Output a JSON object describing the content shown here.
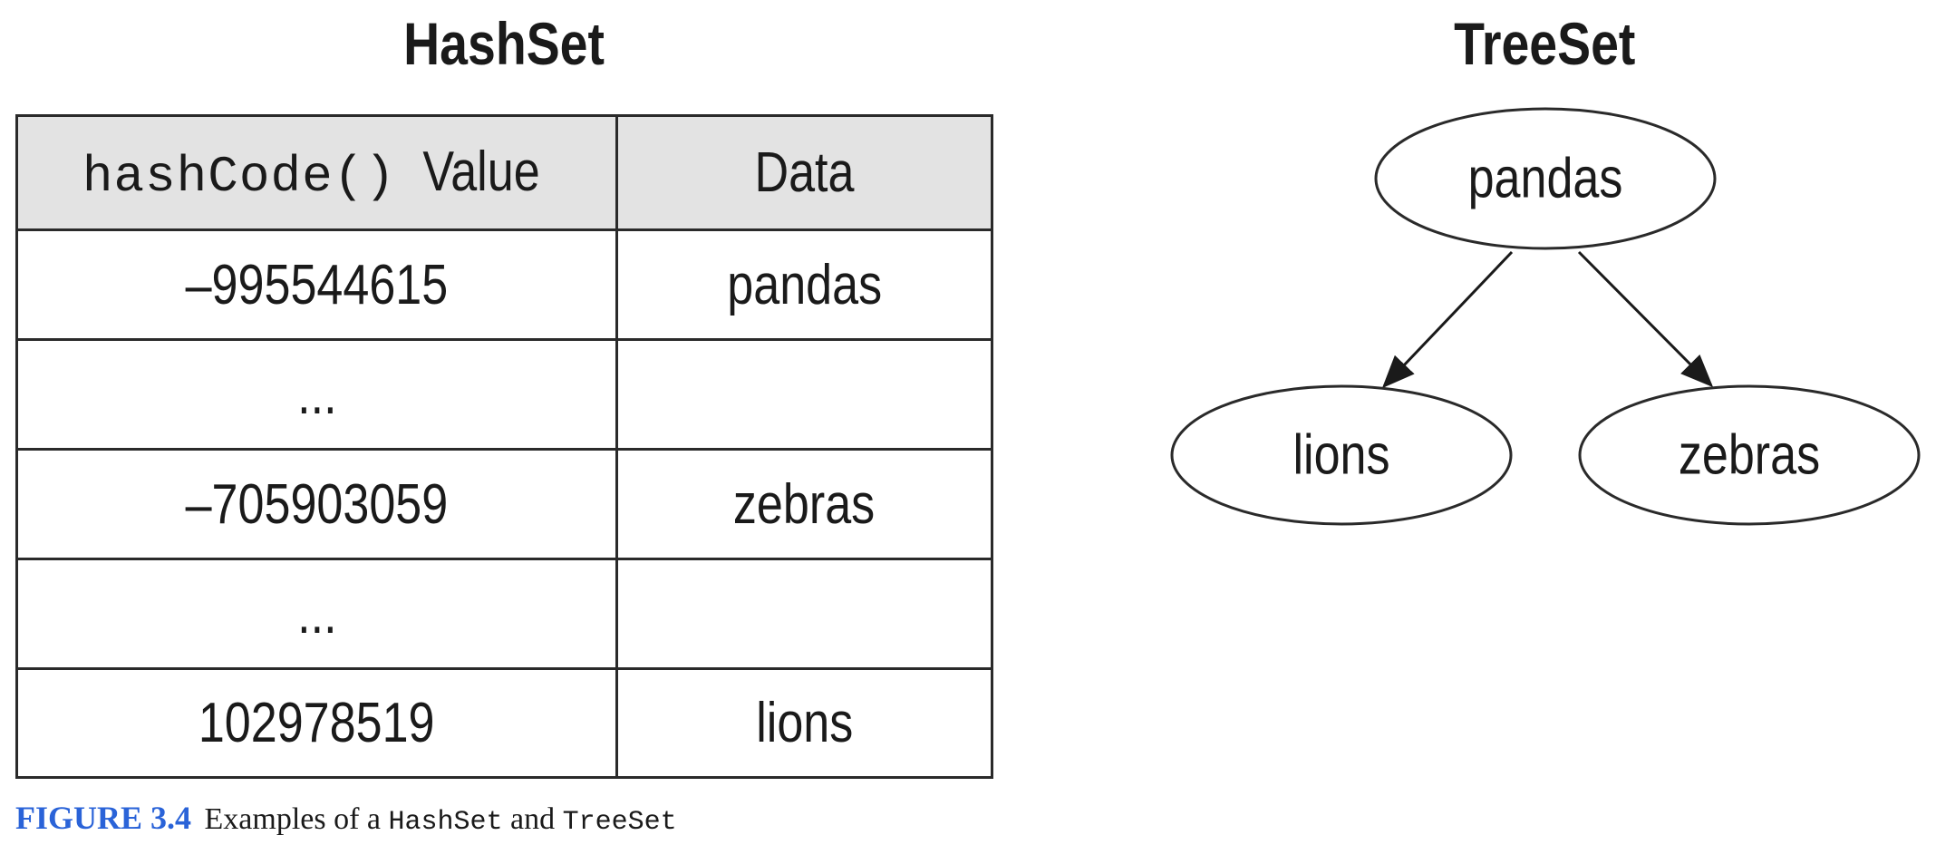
{
  "hashset": {
    "title": "HashSet",
    "header": {
      "method": "hashCode()",
      "value_word": "Value",
      "data": "Data"
    },
    "rows": [
      {
        "hash": "–995544615",
        "data": "pandas"
      },
      {
        "hash": "...",
        "data": ""
      },
      {
        "hash": "–705903059",
        "data": "zebras"
      },
      {
        "hash": "...",
        "data": ""
      },
      {
        "hash": "102978519",
        "data": "lions"
      }
    ]
  },
  "treeset": {
    "title": "TreeSet",
    "root": "pandas",
    "left": "lions",
    "right": "zebras"
  },
  "caption": {
    "figure": "FIGURE 3.4",
    "text_a": "Examples of a",
    "code_a": "HashSet",
    "text_b": "and",
    "code_b": "TreeSet"
  }
}
